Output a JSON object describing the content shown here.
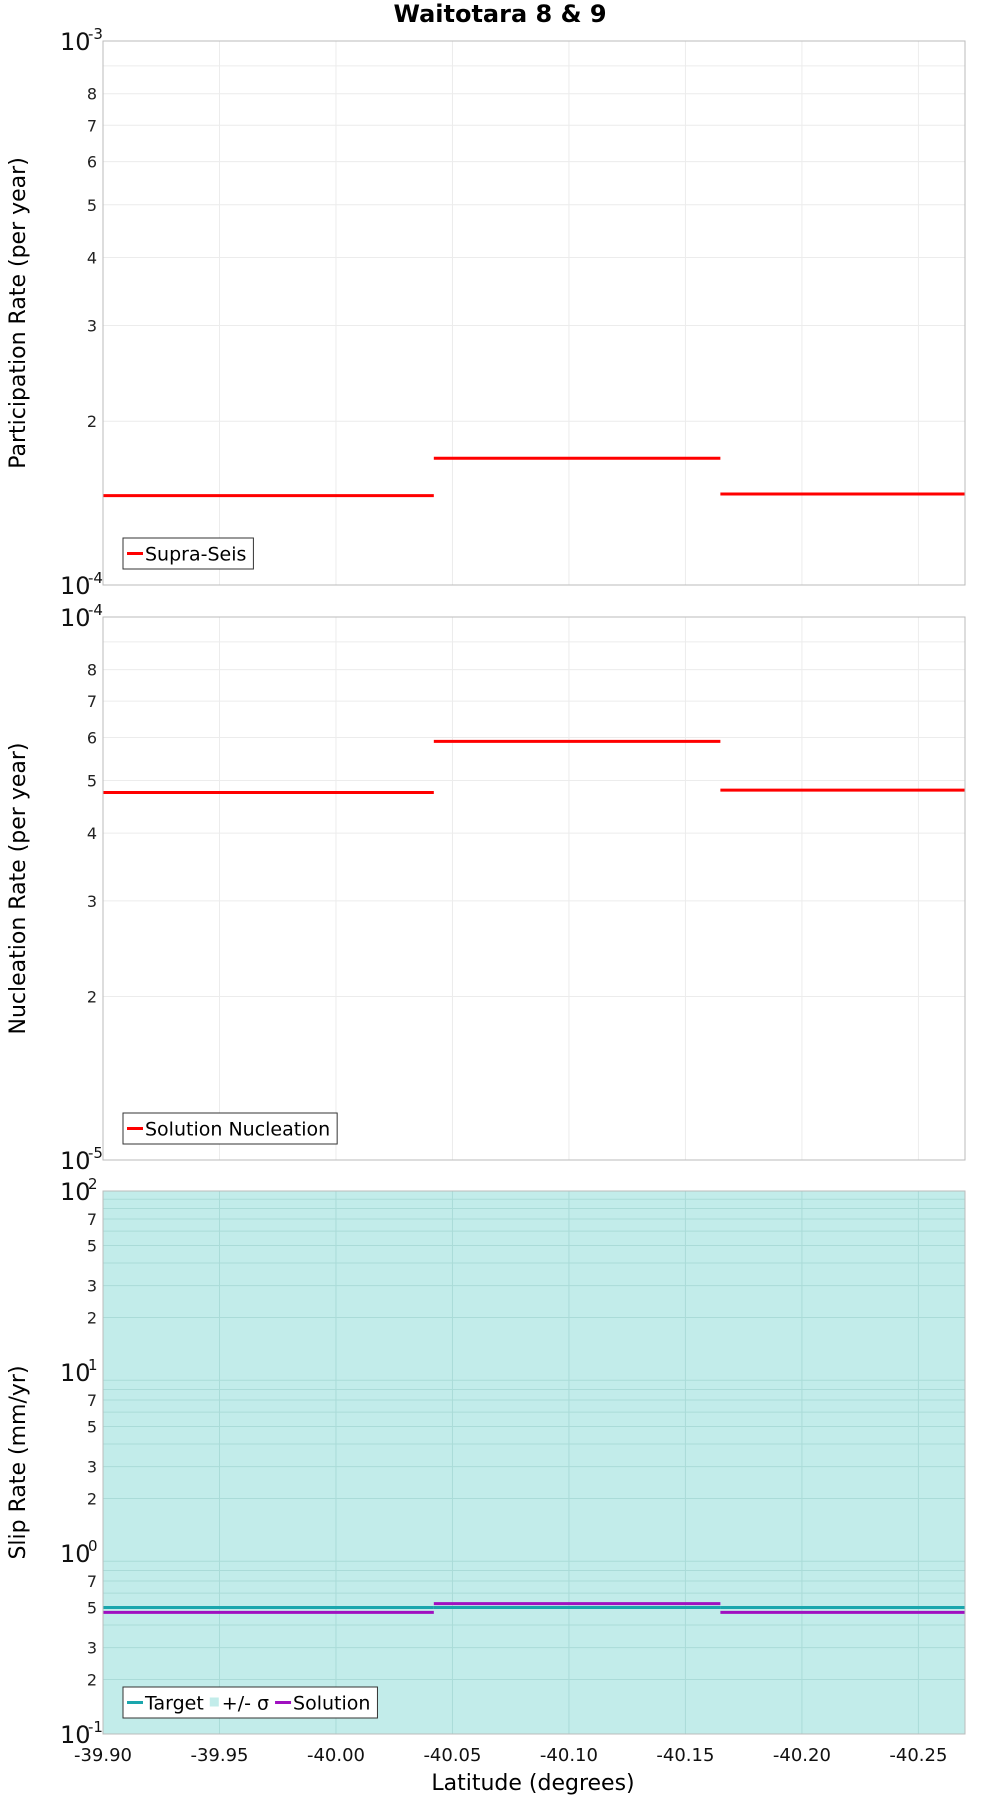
{
  "chart_data": {
    "type": "line",
    "title": "Waitotara 8 & 9",
    "xlabel": "Latitude (degrees)",
    "xlim": [
      -39.9,
      -40.27
    ],
    "x_ticks": [
      "-39.90",
      "-39.95",
      "-40.00",
      "-40.05",
      "-40.10",
      "-40.15",
      "-40.20",
      "-40.25"
    ],
    "panels": [
      {
        "ylabel": "Participation Rate (per year)",
        "yscale": "log",
        "ylim": [
          0.0001,
          0.001
        ],
        "decade_labels": [
          {
            "value": 0.001,
            "base": "10",
            "exp": "-3"
          },
          {
            "value": 0.0001,
            "base": "10",
            "exp": "-4"
          }
        ],
        "minor_labels": [
          "2",
          "3",
          "4",
          "5",
          "6",
          "7",
          "8"
        ],
        "band": null,
        "series": [
          {
            "name": "Supra-Seis",
            "color": "#ff0000",
            "segments": [
              {
                "x": [
                  -39.9,
                  -40.042
                ],
                "y": 0.000146
              },
              {
                "x": [
                  -40.042,
                  -40.165
                ],
                "y": 0.000171
              },
              {
                "x": [
                  -40.165,
                  -40.27
                ],
                "y": 0.000147
              }
            ]
          }
        ],
        "legend": [
          {
            "label": "Supra-Seis",
            "color": "#ff0000",
            "kind": "line"
          }
        ]
      },
      {
        "ylabel": "Nucleation Rate (per year)",
        "yscale": "log",
        "ylim": [
          1e-05,
          0.0001
        ],
        "decade_labels": [
          {
            "value": 0.0001,
            "base": "10",
            "exp": "-4"
          },
          {
            "value": 1e-05,
            "base": "10",
            "exp": "-5"
          }
        ],
        "minor_labels": [
          "2",
          "3",
          "4",
          "5",
          "6",
          "7",
          "8"
        ],
        "band": null,
        "series": [
          {
            "name": "Solution Nucleation",
            "color": "#ff0000",
            "segments": [
              {
                "x": [
                  -39.9,
                  -40.042
                ],
                "y": 4.75e-05
              },
              {
                "x": [
                  -40.042,
                  -40.165
                ],
                "y": 5.9e-05
              },
              {
                "x": [
                  -40.165,
                  -40.27
                ],
                "y": 4.8e-05
              }
            ]
          }
        ],
        "legend": [
          {
            "label": "Solution Nucleation",
            "color": "#ff0000",
            "kind": "line"
          }
        ]
      },
      {
        "ylabel": "Slip Rate (mm/yr)",
        "yscale": "log",
        "ylim": [
          0.1,
          100
        ],
        "decade_labels": [
          {
            "value": 100,
            "base": "10",
            "exp": "2"
          },
          {
            "value": 10,
            "base": "10",
            "exp": "1"
          },
          {
            "value": 1,
            "base": "10",
            "exp": "0"
          },
          {
            "value": 0.1,
            "base": "10",
            "exp": "-1"
          }
        ],
        "minor_labels": [
          "2",
          "3",
          "5",
          "7"
        ],
        "band": {
          "name": "+/- σ",
          "color": "#c2ecea",
          "y": [
            0.1,
            100
          ]
        },
        "series": [
          {
            "name": "Target",
            "color": "#1aa6ad",
            "segments": [
              {
                "x": [
                  -39.9,
                  -40.042
                ],
                "y": 0.5
              },
              {
                "x": [
                  -40.042,
                  -40.165
                ],
                "y": 0.5
              },
              {
                "x": [
                  -40.165,
                  -40.27
                ],
                "y": 0.5
              }
            ]
          },
          {
            "name": "Solution",
            "color": "#a010c0",
            "segments": [
              {
                "x": [
                  -39.9,
                  -40.042
                ],
                "y": 0.47
              },
              {
                "x": [
                  -40.042,
                  -40.165
                ],
                "y": 0.525
              },
              {
                "x": [
                  -40.165,
                  -40.27
                ],
                "y": 0.47
              }
            ]
          }
        ],
        "legend": [
          {
            "label": "Target",
            "color": "#1aa6ad",
            "kind": "line"
          },
          {
            "label": "+/- σ",
            "color": "#c2ecea",
            "kind": "box"
          },
          {
            "label": "Solution",
            "color": "#a010c0",
            "kind": "line"
          }
        ]
      }
    ]
  }
}
